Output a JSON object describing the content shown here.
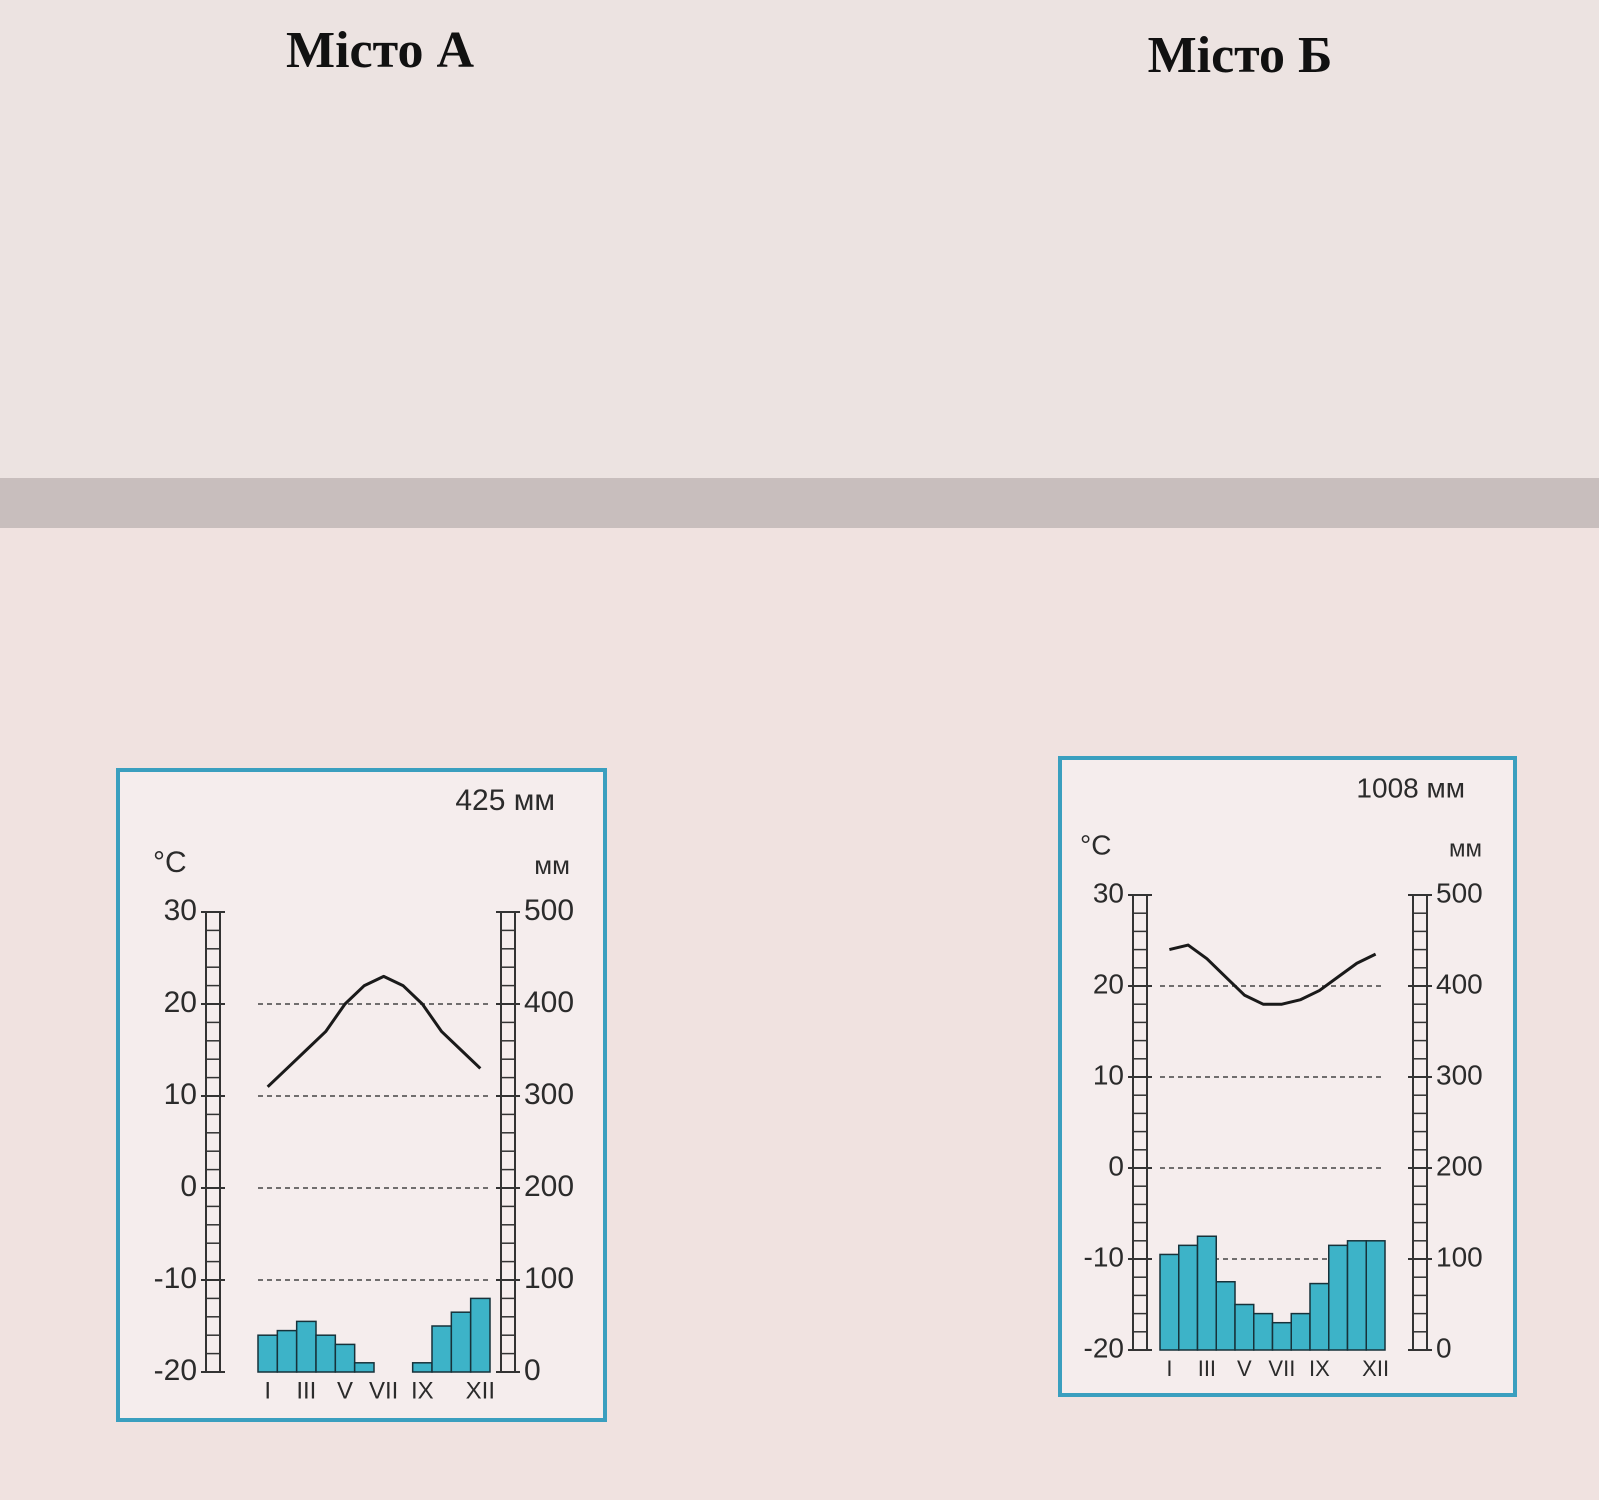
{
  "chart_data": [
    {
      "type": "climate",
      "title": "Місто А",
      "annotation": "425 мм",
      "ylabel": "°C",
      "y2label": "мм",
      "categories": [
        "I",
        null,
        "III",
        null,
        "V",
        null,
        "VII",
        null,
        "IX",
        null,
        null,
        "XII"
      ],
      "series": [
        {
          "type": "bar",
          "axis": "y2",
          "color": "#3db3c8",
          "values": [
            40,
            45,
            55,
            40,
            30,
            10,
            0,
            0,
            10,
            50,
            65,
            80
          ]
        },
        {
          "type": "line",
          "color": "#1a1a1a",
          "values": [
            11,
            13,
            15,
            17,
            20,
            22,
            23,
            22,
            20,
            17,
            15,
            13
          ]
        }
      ],
      "ylim": [
        -20,
        30
      ],
      "yticks": [
        -20,
        -10,
        0,
        10,
        20,
        30
      ],
      "y2lim": [
        0,
        500
      ],
      "y2ticks": [
        0,
        100,
        200,
        300,
        400,
        500
      ],
      "grid": true
    },
    {
      "type": "climate",
      "title": "Місто Б",
      "annotation": "1008 мм",
      "ylabel": "°C",
      "y2label": "мм",
      "categories": [
        "I",
        null,
        "III",
        null,
        "V",
        null,
        "VII",
        null,
        "IX",
        null,
        null,
        "XII"
      ],
      "series": [
        {
          "type": "bar",
          "axis": "y2",
          "color": "#3db3c8",
          "values": [
            105,
            115,
            125,
            75,
            50,
            40,
            30,
            40,
            73,
            115,
            120,
            120
          ]
        },
        {
          "type": "line",
          "color": "#1a1a1a",
          "values": [
            24,
            24.5,
            23,
            21,
            19,
            18,
            18,
            18.5,
            19.5,
            21,
            22.5,
            23.5
          ]
        }
      ],
      "ylim": [
        -20,
        30
      ],
      "yticks": [
        -20,
        -10,
        0,
        10,
        20,
        30
      ],
      "y2lim": [
        0,
        500
      ],
      "y2ticks": [
        0,
        100,
        200,
        300,
        400,
        500
      ],
      "grid": true
    }
  ]
}
